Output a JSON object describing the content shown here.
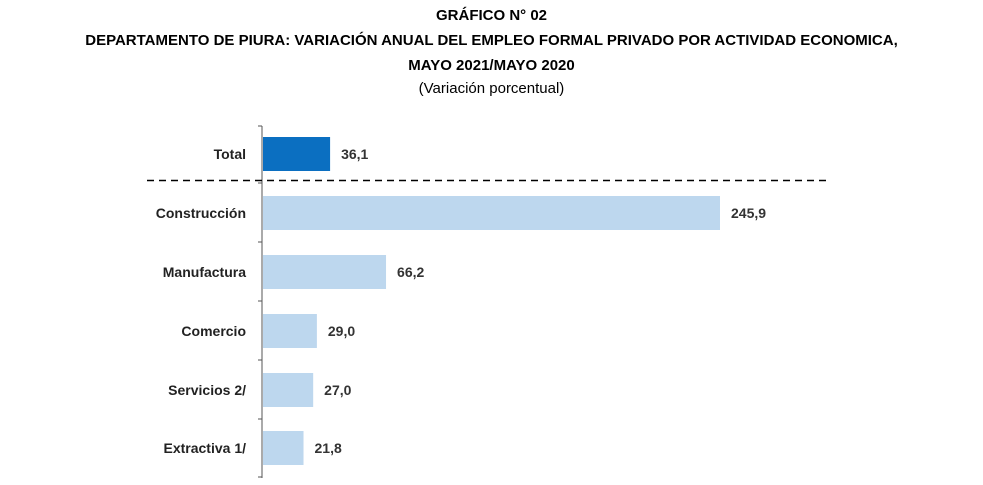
{
  "title": {
    "line1": "GRÁFICO N° 02",
    "line2": "DEPARTAMENTO DE PIURA: VARIACIÓN ANUAL DEL EMPLEO FORMAL PRIVADO POR ACTIVIDAD ECONOMICA,",
    "line3": "MAYO 2021/MAYO 2020",
    "subtitle": "(Variación porcentual)"
  },
  "colors": {
    "total_bar": "#0b6fc1",
    "sector_bar": "#bdd7ee",
    "axis": "#555555"
  },
  "chart_data": {
    "type": "bar",
    "orientation": "horizontal",
    "categories": [
      "Total",
      "Construcción",
      "Manufactura",
      "Comercio",
      "Servicios  2/",
      "Extractiva  1/"
    ],
    "values": [
      36.1,
      245.9,
      66.2,
      29.0,
      27.0,
      21.8
    ],
    "value_labels": [
      "36,1",
      "245,9",
      "66,2",
      "29,0",
      "27,0",
      "21,8"
    ],
    "highlight_category": "Total",
    "separator_after": "Total",
    "xlim": [
      0,
      245.9
    ],
    "grid": false,
    "legend": "none"
  }
}
